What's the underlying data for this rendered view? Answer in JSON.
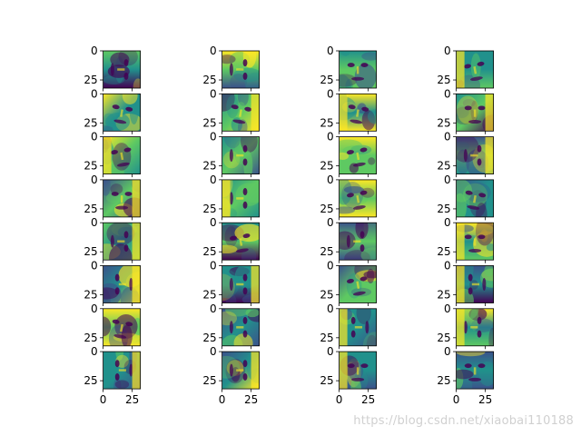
{
  "chart_data": {
    "type": "heatmap",
    "layout": {
      "rows": 8,
      "cols": 4
    },
    "panel_kind": "face image (32x32 px)",
    "colormap": "viridis",
    "axis_range": {
      "x": [
        0,
        32
      ],
      "y": [
        0,
        32
      ]
    },
    "yticks": [
      "0",
      "25"
    ],
    "xticks_bottom_row": [
      "0",
      "25"
    ],
    "grid": false,
    "legend": "none"
  },
  "watermark": "https://blog.csdn.net/xiaobai110188",
  "colors": {
    "viridis_dark": "#440154",
    "viridis_blue": "#3b528b",
    "viridis_teal": "#21918c",
    "viridis_green": "#5ec962",
    "viridis_yellow": "#fde725"
  }
}
